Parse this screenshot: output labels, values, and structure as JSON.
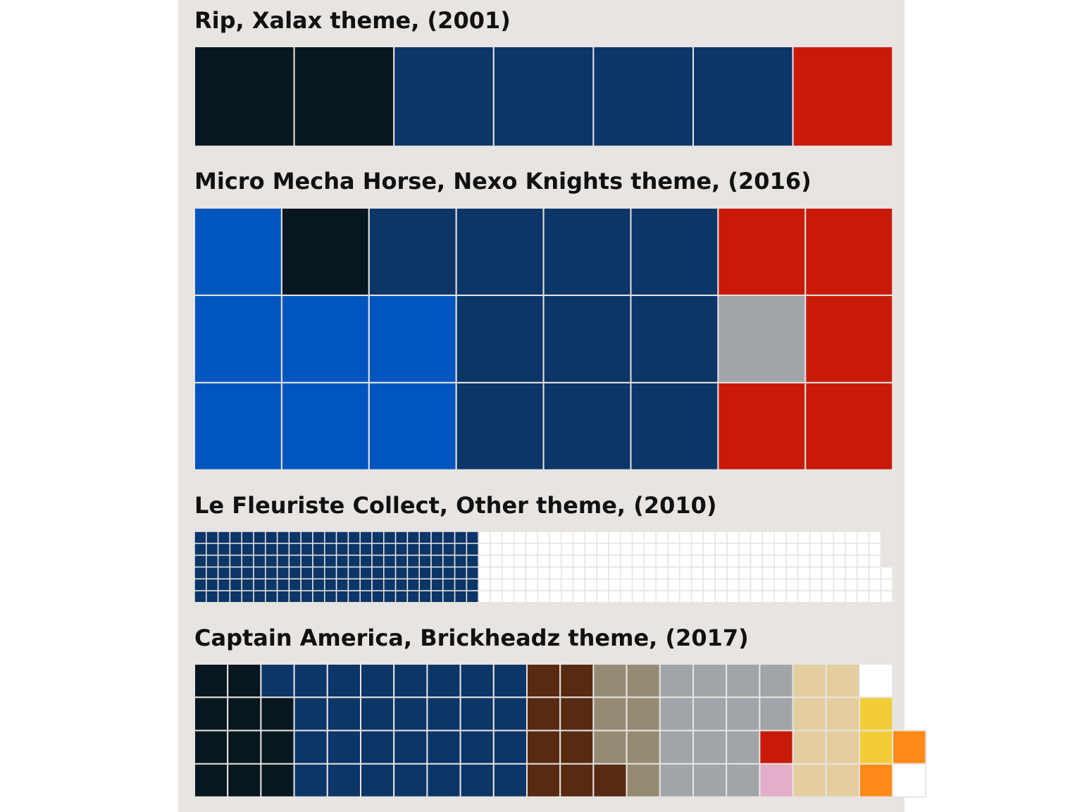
{
  "page": {
    "background": "#ffffff",
    "panel_background": "#e7e4e1"
  },
  "palette": {
    "black": "#081620",
    "dark_blue": "#0c3568",
    "blue": "#0055bf",
    "red": "#c91a09",
    "light_gray": "#a0a5a9",
    "white": "#ffffff",
    "reddish_brown": "#582a12",
    "dark_tan": "#958a73",
    "bright_pink": "#e4adc8",
    "tan": "#e4cd9e",
    "orange": "#fe8a18",
    "yellow": "#f2cd37"
  },
  "chart_data": [
    {
      "type": "waffle",
      "title": "Rip, Xalax theme, (2001)",
      "rows": 1,
      "fill_order": "column-major",
      "series": [
        {
          "color": "black",
          "count": 2
        },
        {
          "color": "dark_blue",
          "count": 4
        },
        {
          "color": "red",
          "count": 1
        }
      ]
    },
    {
      "type": "waffle",
      "title": "Micro Mecha Horse, Nexo Knights theme, (2016)",
      "rows": 3,
      "fill_order": "column-major",
      "series": [
        {
          "color": "blue",
          "count": 5
        },
        {
          "color": "black",
          "count": 1
        },
        {
          "color": "blue",
          "count": 2
        },
        {
          "color": "dark_blue",
          "count": 10
        },
        {
          "color": "red",
          "count": 1
        },
        {
          "color": "light_gray",
          "count": 1
        },
        {
          "color": "red",
          "count": 4
        }
      ]
    },
    {
      "type": "waffle",
      "title": "Le Fleuriste Collect, Other theme, (2010)",
      "rows": 6,
      "fill_order": "column-major",
      "series": [
        {
          "color": "dark_blue",
          "count": 144
        },
        {
          "color": "white",
          "count": 207
        }
      ]
    },
    {
      "type": "waffle",
      "title": "Captain America, Brickheadz theme, (2017)",
      "rows": 4,
      "fill_order": "column-major",
      "series": [
        {
          "color": "black",
          "count": 11
        },
        {
          "color": "dark_blue",
          "count": 29
        },
        {
          "color": "reddish_brown",
          "count": 9
        },
        {
          "color": "dark_tan",
          "count": 7
        },
        {
          "color": "light_gray",
          "count": 12
        },
        {
          "color": "bright_pink",
          "count": 1
        },
        {
          "color": "red",
          "count": 1
        },
        {
          "color": "light_gray",
          "count": 2
        },
        {
          "color": "tan",
          "count": 8
        },
        {
          "color": "orange",
          "count": 1
        },
        {
          "color": "yellow",
          "count": 2
        },
        {
          "color": "white",
          "count": 2
        },
        {
          "color": "orange",
          "count": 1
        }
      ]
    }
  ]
}
